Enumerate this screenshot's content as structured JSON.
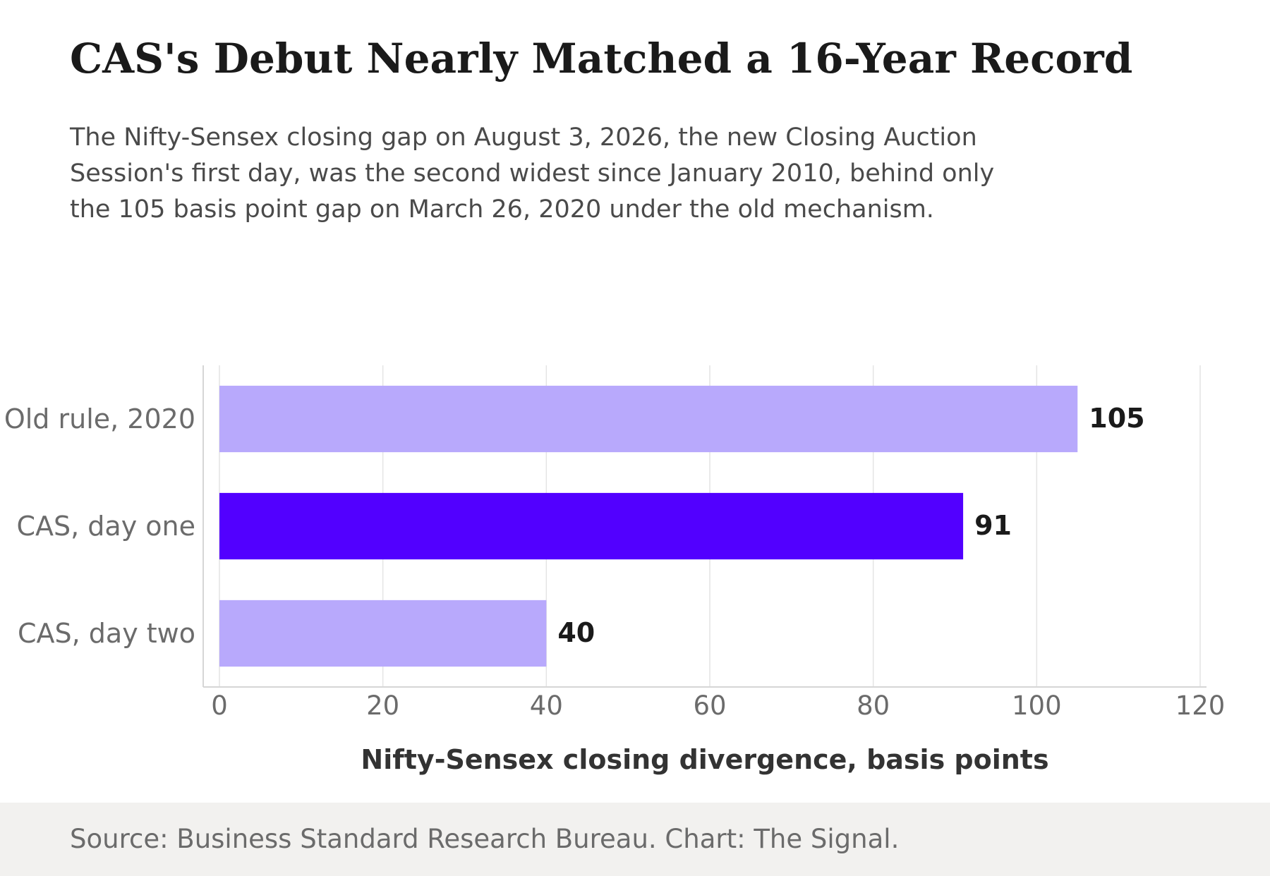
{
  "header": {
    "title": "CAS's Debut Nearly Matched a 16-Year Record",
    "subtitle": "The Nifty-Sensex closing gap on August 3, 2026, the new Closing Auction Session's first day, was the second widest since January 2010, behind only the 105 basis point gap on March 26, 2020 under the old mechanism."
  },
  "footer": {
    "source": "Source: Business Standard Research Bureau. Chart: The Signal."
  },
  "chart_data": {
    "type": "bar",
    "orientation": "horizontal",
    "categories": [
      "Old rule, 2020",
      "CAS, day one",
      "CAS, day two"
    ],
    "values": [
      105,
      91,
      40
    ],
    "value_labels": [
      "105",
      "91",
      "40"
    ],
    "highlight_index": 1,
    "colors": {
      "default": "#b8a9fc",
      "highlight": "#5200ff"
    },
    "xlabel": "Nifty-Sensex closing divergence, basis points",
    "ylabel": "",
    "xlim": [
      0,
      120
    ],
    "xticks": [
      0,
      20,
      40,
      60,
      80,
      100,
      120
    ],
    "xtick_labels": [
      "0",
      "20",
      "40",
      "60",
      "80",
      "100",
      "120"
    ],
    "grid": "vertical"
  }
}
